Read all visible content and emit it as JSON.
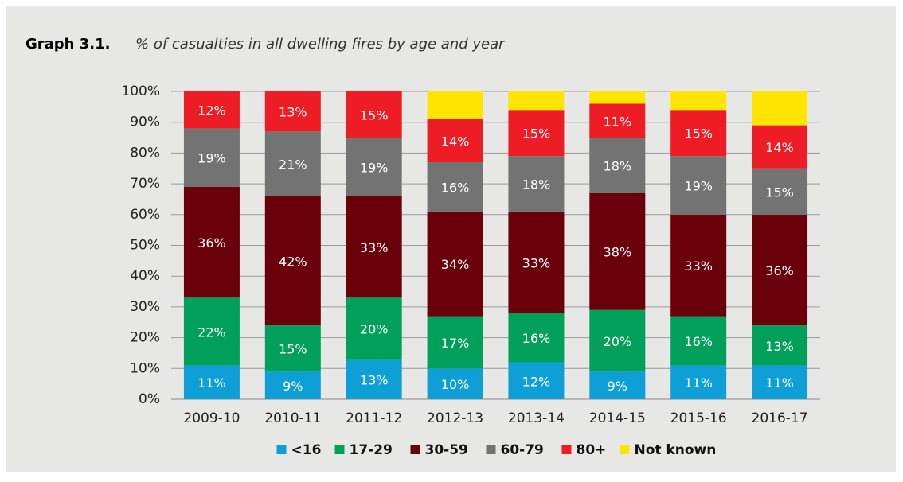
{
  "chart_data": {
    "type": "stacked_bar",
    "title": "Graph 3.1.",
    "subtitle": "% of casualties in all dwelling fires by age and year",
    "categories": [
      "2009-10",
      "2010-11",
      "2011-12",
      "2012-13",
      "2013-14",
      "2014-15",
      "2015-16",
      "2016-17"
    ],
    "series": [
      {
        "name": "<16",
        "color": "#0e9fd6",
        "values": [
          11,
          9,
          13,
          10,
          12,
          9,
          11,
          11
        ],
        "value_labels": [
          "11%",
          "9%",
          "13%",
          "10%",
          "12%",
          "9%",
          "11%",
          "11%"
        ]
      },
      {
        "name": "17-29",
        "color": "#00a05b",
        "values": [
          22,
          15,
          20,
          17,
          16,
          20,
          16,
          13
        ],
        "value_labels": [
          "22%",
          "15%",
          "20%",
          "17%",
          "16%",
          "20%",
          "16%",
          "13%"
        ]
      },
      {
        "name": "30-59",
        "color": "#6a0009",
        "values": [
          36,
          42,
          33,
          34,
          33,
          38,
          33,
          36
        ],
        "value_labels": [
          "36%",
          "42%",
          "33%",
          "34%",
          "33%",
          "38%",
          "33%",
          "36%"
        ]
      },
      {
        "name": "60-79",
        "color": "#737373",
        "values": [
          19,
          21,
          19,
          16,
          18,
          18,
          19,
          15
        ],
        "value_labels": [
          "19%",
          "21%",
          "19%",
          "16%",
          "18%",
          "18%",
          "19%",
          "15%"
        ]
      },
      {
        "name": "80+",
        "color": "#ee1d25",
        "values": [
          12,
          13,
          15,
          14,
          15,
          11,
          15,
          14
        ],
        "value_labels": [
          "12%",
          "13%",
          "15%",
          "14%",
          "15%",
          "11%",
          "15%",
          "14%"
        ]
      },
      {
        "name": "Not known",
        "color": "#ffe500",
        "values": [
          0,
          0,
          0,
          9,
          6,
          4,
          6,
          11
        ]
      }
    ],
    "ylim": [
      0,
      100
    ],
    "yticks": [
      {
        "value": 0,
        "label": "0%"
      },
      {
        "value": 10,
        "label": "10%"
      },
      {
        "value": 20,
        "label": "20%"
      },
      {
        "value": 30,
        "label": "30%"
      },
      {
        "value": 40,
        "label": "40%"
      },
      {
        "value": 50,
        "label": "50%"
      },
      {
        "value": 60,
        "label": "60%"
      },
      {
        "value": 70,
        "label": "70%"
      },
      {
        "value": 80,
        "label": "80%"
      },
      {
        "value": 90,
        "label": "90%"
      },
      {
        "value": 100,
        "label": "100%"
      }
    ],
    "grid": true,
    "legend": "bottom"
  }
}
